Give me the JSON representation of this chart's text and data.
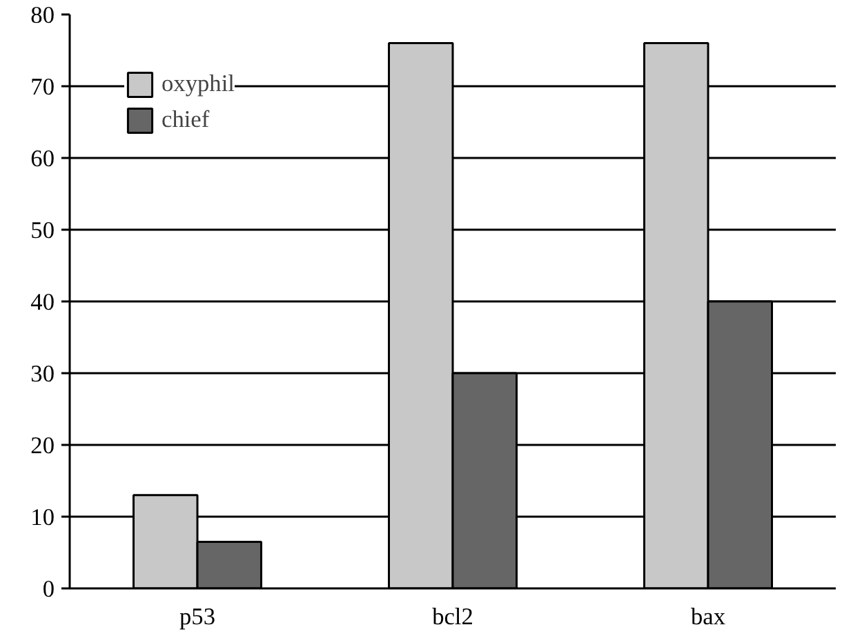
{
  "chart_data": {
    "type": "bar",
    "categories": [
      "p53",
      "bcl2",
      "bax"
    ],
    "series": [
      {
        "name": "oxyphil",
        "color": "#c8c8c8",
        "values": [
          13,
          76,
          76
        ]
      },
      {
        "name": "chief",
        "color": "#666666",
        "values": [
          6.5,
          30,
          40
        ]
      }
    ],
    "ylim": [
      0,
      80
    ],
    "yticks": [
      0,
      10,
      20,
      30,
      40,
      50,
      60,
      70,
      80
    ],
    "grid": "y",
    "legend": "top left"
  }
}
